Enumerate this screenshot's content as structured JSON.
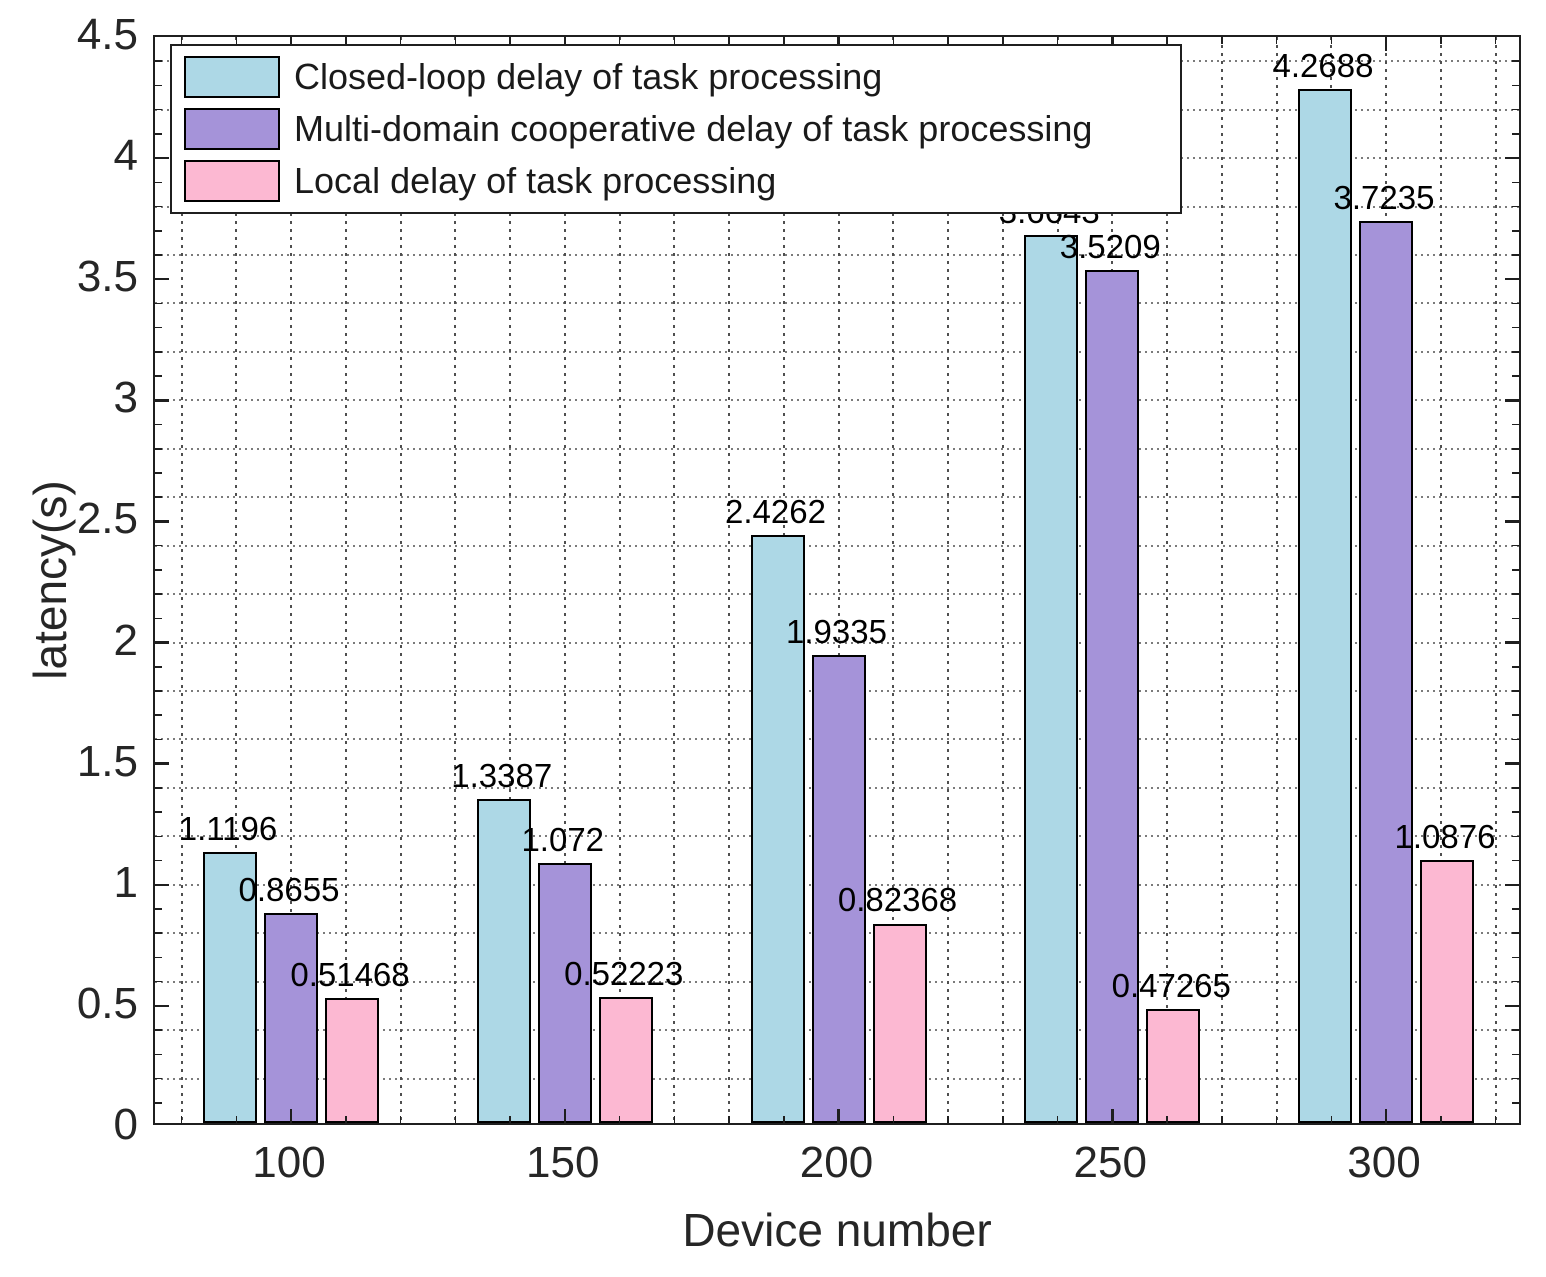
{
  "figure": {
    "xlabel": "Device number",
    "ylabel": "latency(s)"
  },
  "legend": {
    "items": [
      {
        "label": "Closed-loop delay of task processing",
        "color": "#ADD8E6"
      },
      {
        "label": "Multi-domain cooperative delay of task processing",
        "color": "#A593D9"
      },
      {
        "label": "Local delay of task processing",
        "color": "#FCB8D2"
      }
    ]
  },
  "chart_data": {
    "type": "bar",
    "title": "",
    "xlabel": "Device number",
    "ylabel": "latency(s)",
    "categories": [
      "100",
      "150",
      "200",
      "250",
      "300"
    ],
    "series": [
      {
        "name": "Closed-loop delay of task processing",
        "color": "#ADD8E6",
        "values": [
          1.1196,
          1.3387,
          2.4262,
          3.6643,
          4.2688
        ],
        "labels": [
          "1.1196",
          "1.3387",
          "2.4262",
          "3.6643",
          "4.2688"
        ]
      },
      {
        "name": "Multi-domain cooperative delay of task processing",
        "color": "#A593D9",
        "values": [
          0.8655,
          1.072,
          1.9335,
          3.5209,
          3.7235
        ],
        "labels": [
          "0.8655",
          "1.072",
          "1.9335",
          "3.5209",
          "3.7235"
        ]
      },
      {
        "name": "Local delay of task processing",
        "color": "#FCB8D2",
        "values": [
          0.51468,
          0.52223,
          0.82368,
          0.47265,
          1.0876
        ],
        "labels": [
          "0.51468",
          "0.52223",
          "0.82368",
          "0.47265",
          "1.0876"
        ]
      }
    ],
    "ylim": [
      0,
      4.5
    ],
    "yticks": [
      0,
      0.5,
      1,
      1.5,
      2,
      2.5,
      3,
      3.5,
      4,
      4.5
    ],
    "ytick_labels": [
      "0",
      "0.5",
      "1",
      "1.5",
      "2",
      "2.5",
      "3",
      "3.5",
      "4",
      "4.5"
    ],
    "x_values": [
      100,
      150,
      200,
      250,
      300
    ],
    "grid": {
      "horizontal_step": 0.2,
      "vertical_step_x_units": 10,
      "style": "dotted"
    },
    "legend_position": "top-left-inside"
  }
}
